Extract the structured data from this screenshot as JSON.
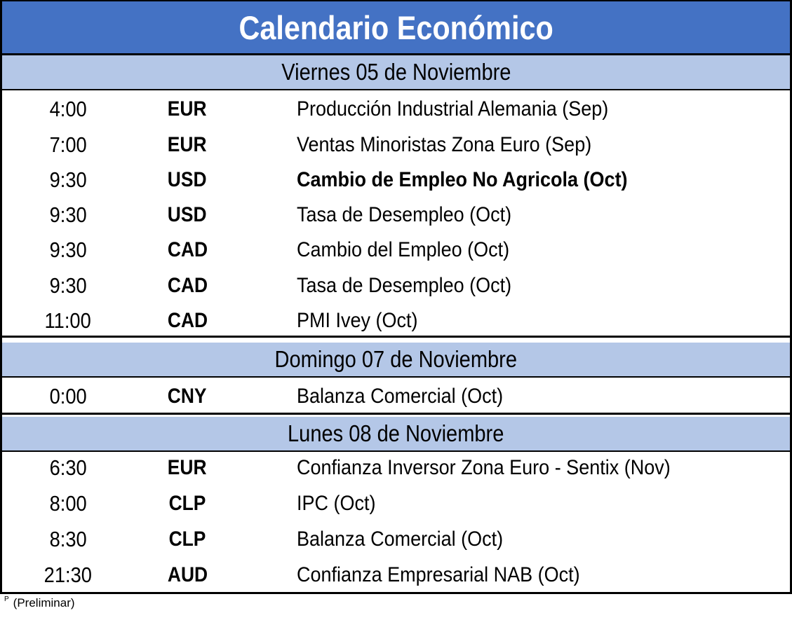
{
  "title": "Calendario Económico",
  "sections": [
    {
      "day": "Viernes 05 de Noviembre",
      "events": [
        {
          "time": "4:00",
          "currency": "EUR",
          "event": "Producción Industrial Alemania (Sep)",
          "bold": false
        },
        {
          "time": "7:00",
          "currency": "EUR",
          "event": "Ventas Minoristas Zona Euro (Sep)",
          "bold": false
        },
        {
          "time": "9:30",
          "currency": "USD",
          "event": "Cambio de Empleo No Agricola (Oct)",
          "bold": true
        },
        {
          "time": "9:30",
          "currency": "USD",
          "event": "Tasa de Desempleo (Oct)",
          "bold": false
        },
        {
          "time": "9:30",
          "currency": "CAD",
          "event": "Cambio del Empleo (Oct)",
          "bold": false
        },
        {
          "time": "9:30",
          "currency": "CAD",
          "event": "Tasa de Desempleo (Oct)",
          "bold": false
        },
        {
          "time": "11:00",
          "currency": "CAD",
          "event": "PMI Ivey (Oct)",
          "bold": false
        }
      ]
    },
    {
      "day": "Domingo 07 de Noviembre",
      "events": [
        {
          "time": "0:00",
          "currency": "CNY",
          "event": "Balanza Comercial (Oct)",
          "bold": false
        }
      ]
    },
    {
      "day": "Lunes 08 de Noviembre",
      "events": [
        {
          "time": "6:30",
          "currency": "EUR",
          "event": "Confianza Inversor Zona Euro - Sentix (Nov)",
          "bold": false
        },
        {
          "time": "8:00",
          "currency": "CLP",
          "event": "IPC (Oct)",
          "bold": false
        },
        {
          "time": "8:30",
          "currency": "CLP",
          "event": "Balanza Comercial (Oct)",
          "bold": false
        },
        {
          "time": "21:30",
          "currency": "AUD",
          "event": "Confianza Empresarial NAB (Oct)",
          "bold": false
        }
      ]
    }
  ],
  "footnote": {
    "marker": "P",
    "text": "(Preliminar)"
  },
  "colors": {
    "title_bg": "#4472C4",
    "day_bg": "#B4C7E7",
    "border": "#000000"
  }
}
